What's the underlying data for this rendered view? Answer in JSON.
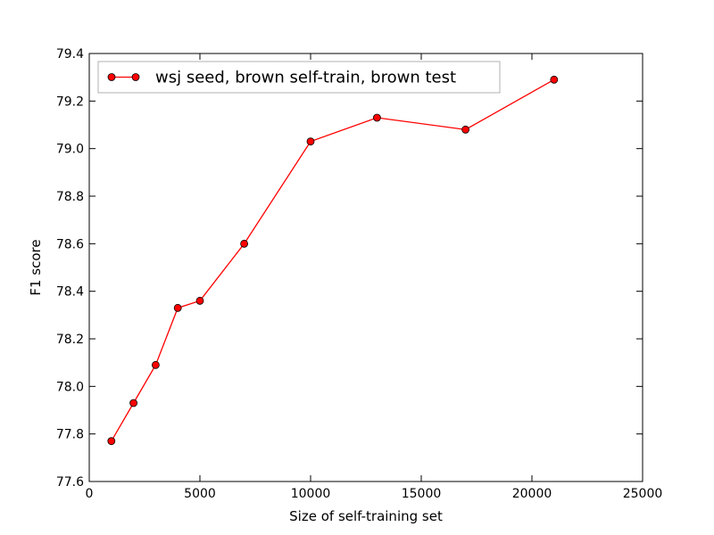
{
  "chart_data": {
    "type": "line",
    "title": "",
    "xlabel": "Size of self-training set",
    "ylabel": "F1 score",
    "xlim": [
      0,
      25000
    ],
    "ylim": [
      77.6,
      79.4
    ],
    "xticks": [
      0,
      5000,
      10000,
      15000,
      20000,
      25000
    ],
    "yticks": [
      77.6,
      77.8,
      78.0,
      78.2,
      78.4,
      78.6,
      78.8,
      79.0,
      79.2,
      79.4
    ],
    "xtick_labels": [
      "0",
      "5000",
      "10000",
      "15000",
      "20000",
      "25000"
    ],
    "ytick_labels": [
      "77.6",
      "77.8",
      "78.0",
      "78.2",
      "78.4",
      "78.6",
      "78.8",
      "79.0",
      "79.2",
      "79.4"
    ],
    "grid": false,
    "legend_position": "top-left",
    "series": [
      {
        "name": "wsj seed, brown self-train, brown test",
        "color": "#ff0000",
        "marker": "circle",
        "x": [
          1000,
          2000,
          3000,
          4000,
          5000,
          7000,
          10000,
          13000,
          17000,
          21000
        ],
        "y": [
          77.77,
          77.93,
          78.09,
          78.33,
          78.36,
          78.6,
          79.03,
          79.13,
          79.08,
          79.29
        ]
      }
    ]
  }
}
